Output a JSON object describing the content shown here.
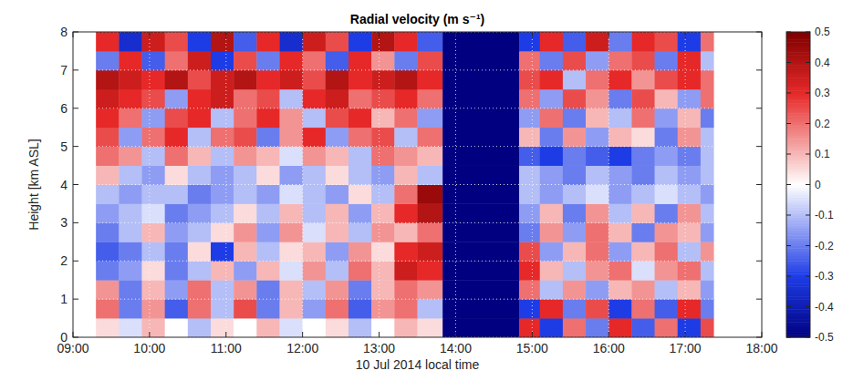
{
  "chart_data": {
    "type": "heatmap",
    "title": "Radial velocity (m s⁻¹)",
    "x_label": "10 Jul 2014 local time",
    "y_label": "Height [km ASL]",
    "xlim": [
      9,
      18
    ],
    "xticks": [
      {
        "value": 9,
        "label": "09:00"
      },
      {
        "value": 10,
        "label": "10:00"
      },
      {
        "value": 11,
        "label": "11:00"
      },
      {
        "value": 12,
        "label": "12:00"
      },
      {
        "value": 13,
        "label": "13:00"
      },
      {
        "value": 14,
        "label": "14:00"
      },
      {
        "value": 15,
        "label": "15:00"
      },
      {
        "value": 16,
        "label": "16:00"
      },
      {
        "value": 17,
        "label": "17:00"
      },
      {
        "value": 18,
        "label": "18:00"
      }
    ],
    "ylim": [
      0,
      8
    ],
    "yticks": [
      0,
      1,
      2,
      3,
      4,
      5,
      6,
      7,
      8
    ],
    "grid": true,
    "x_bins": [
      9.3,
      9.6,
      9.9,
      10.2,
      10.5,
      10.8,
      11.1,
      11.4,
      11.7,
      12.0,
      12.3,
      12.6,
      12.9,
      13.2,
      13.5,
      13.83,
      14.83,
      15.1,
      15.4,
      15.7,
      16.0,
      16.3,
      16.6,
      16.9,
      17.2,
      17.37
    ],
    "y_bins": [
      0,
      0.5,
      1,
      1.5,
      2,
      2.5,
      3,
      3.5,
      4,
      4.5,
      5,
      5.5,
      6,
      6.5,
      7,
      7.5,
      8
    ],
    "values": [
      [
        0.05,
        -0.05,
        0.1,
        0,
        -0.1,
        0.05,
        0,
        0.1,
        -0.05,
        0,
        0.05,
        -0.1,
        0,
        0.1,
        0.05,
        -0.5,
        0.3,
        -0.3,
        0.2,
        -0.2,
        0.3,
        -0.25,
        0.2,
        -0.3,
        0.25
      ],
      [
        0.2,
        -0.2,
        0.15,
        -0.25,
        0.2,
        -0.1,
        0.25,
        -0.2,
        0.1,
        -0.15,
        0.2,
        -0.25,
        0.15,
        0.2,
        -0.1,
        -0.5,
        -0.3,
        0.3,
        -0.2,
        0.25,
        -0.3,
        0.2,
        -0.25,
        0.3,
        -0.2
      ],
      [
        0.15,
        -0.2,
        0.1,
        -0.15,
        0.2,
        -0.1,
        0.15,
        -0.2,
        0.1,
        -0.1,
        0.15,
        -0.2,
        0.1,
        0.2,
        0.15,
        -0.5,
        0.2,
        -0.1,
        0.15,
        -0.15,
        0.1,
        0.15,
        -0.1,
        0.1,
        -0.15
      ],
      [
        -0.2,
        -0.15,
        0.05,
        -0.2,
        -0.1,
        0.1,
        -0.15,
        0.1,
        -0.05,
        0.15,
        -0.1,
        0.2,
        0.1,
        0.35,
        0.3,
        -0.5,
        0.3,
        0.1,
        -0.1,
        0.15,
        0.2,
        -0.05,
        0.15,
        0.2,
        -0.1
      ],
      [
        -0.25,
        -0.2,
        -0.1,
        -0.2,
        0.05,
        -0.3,
        0.1,
        -0.1,
        0.05,
        0.1,
        -0.15,
        0.15,
        0.05,
        0.3,
        0.35,
        -0.5,
        0.25,
        -0.15,
        0.1,
        0.2,
        -0.15,
        0.1,
        0.2,
        -0.1,
        0.15
      ],
      [
        -0.2,
        -0.1,
        0.1,
        -0.15,
        -0.1,
        0.05,
        0.15,
        -0.15,
        0.15,
        -0.05,
        0.1,
        -0.1,
        0.15,
        0.1,
        0.2,
        -0.5,
        -0.2,
        0.15,
        -0.15,
        0.2,
        0.1,
        -0.2,
        0.15,
        0.1,
        -0.15
      ],
      [
        -0.15,
        -0.1,
        -0.05,
        -0.2,
        -0.15,
        -0.1,
        0.05,
        -0.1,
        0.1,
        -0.1,
        0.1,
        -0.15,
        0.1,
        0.3,
        0.4,
        -0.5,
        -0.15,
        0.1,
        -0.2,
        0.15,
        -0.1,
        0.1,
        -0.2,
        0.15,
        -0.1
      ],
      [
        -0.1,
        -0.15,
        -0.1,
        -0.1,
        -0.2,
        -0.15,
        -0.1,
        -0.15,
        -0.05,
        -0.1,
        -0.15,
        0.05,
        -0.1,
        0.2,
        0.45,
        -0.5,
        -0.1,
        -0.15,
        -0.1,
        -0.05,
        -0.15,
        -0.1,
        -0.05,
        -0.1,
        -0.15
      ],
      [
        0.1,
        -0.1,
        -0.15,
        0.05,
        -0.1,
        -0.15,
        -0.1,
        0.05,
        -0.15,
        -0.1,
        0.05,
        -0.1,
        -0.15,
        0.1,
        -0.1,
        -0.5,
        -0.1,
        -0.15,
        -0.2,
        -0.1,
        -0.15,
        -0.2,
        -0.1,
        -0.15,
        -0.1
      ],
      [
        0.2,
        0.15,
        -0.1,
        0.2,
        0.1,
        -0.1,
        0.15,
        0.1,
        -0.05,
        0.15,
        0.1,
        -0.1,
        0.2,
        0.15,
        0.1,
        -0.5,
        -0.25,
        -0.3,
        -0.2,
        -0.25,
        -0.3,
        -0.2,
        -0.15,
        -0.2,
        -0.1
      ],
      [
        0.25,
        -0.15,
        0.2,
        0.3,
        -0.1,
        0.2,
        0.25,
        -0.2,
        0.15,
        0.3,
        -0.15,
        0.2,
        0.25,
        -0.1,
        0.2,
        -0.5,
        0.1,
        -0.2,
        0.15,
        -0.15,
        0.1,
        0.05,
        -0.2,
        0.15,
        -0.1
      ],
      [
        0.3,
        0.2,
        -0.15,
        0.25,
        0.3,
        -0.1,
        0.2,
        0.3,
        0.15,
        -0.1,
        0.25,
        0.3,
        0.1,
        0.2,
        -0.15,
        -0.5,
        -0.15,
        0.2,
        -0.2,
        0.1,
        -0.1,
        0.2,
        -0.15,
        0.1,
        -0.2
      ],
      [
        0.35,
        0.3,
        0.25,
        -0.15,
        0.3,
        0.35,
        0.2,
        0.25,
        -0.1,
        0.3,
        0.35,
        0.2,
        0.25,
        0.3,
        0.2,
        -0.5,
        0.2,
        -0.15,
        0.25,
        0.15,
        -0.2,
        0.25,
        0.1,
        -0.15,
        0.2
      ],
      [
        0.4,
        0.35,
        0.3,
        0.4,
        0.25,
        0.35,
        0.4,
        0.3,
        0.35,
        0.25,
        0.4,
        0.3,
        0.35,
        0.4,
        0.3,
        -0.5,
        0.25,
        0.3,
        -0.1,
        0.2,
        0.3,
        0.15,
        0.25,
        0.3,
        0.2
      ],
      [
        -0.2,
        0.3,
        -0.25,
        0.2,
        0.35,
        -0.3,
        0.25,
        -0.2,
        0.3,
        0.2,
        -0.25,
        0.3,
        0.15,
        -0.2,
        0.25,
        -0.5,
        0.2,
        -0.2,
        0.25,
        -0.15,
        0.2,
        0.25,
        -0.2,
        0.3,
        -0.1
      ],
      [
        0.3,
        -0.35,
        0.35,
        0.25,
        -0.3,
        0.4,
        -0.25,
        0.3,
        -0.35,
        0.35,
        0.25,
        -0.3,
        0.4,
        0.3,
        -0.25,
        -0.5,
        -0.3,
        0.3,
        -0.25,
        0.35,
        -0.2,
        0.3,
        0.25,
        -0.3,
        0.2
      ]
    ],
    "colorbar_range": [
      -0.5,
      0.5
    ],
    "colorbar_ticks": [
      -0.5,
      -0.4,
      -0.3,
      -0.2,
      -0.1,
      0,
      0.1,
      0.2,
      0.3,
      0.4,
      0.5
    ]
  }
}
